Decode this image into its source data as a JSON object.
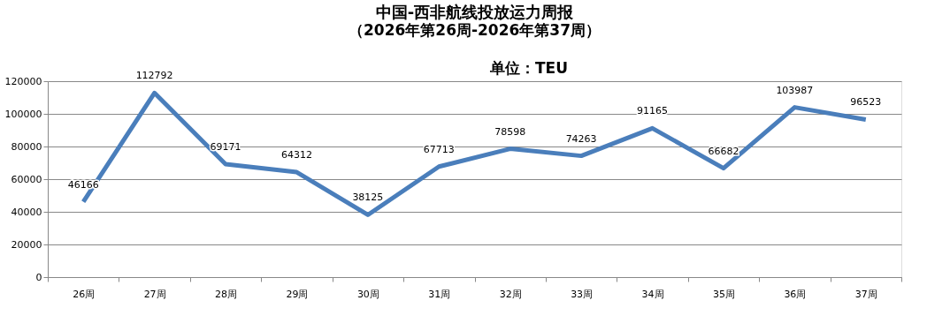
{
  "chart_data": {
    "type": "line",
    "title": "中国-西非航线投放运力周报",
    "subtitle": "（2026年第26周-2026年第37周）",
    "annotations": [
      "单位：TEU"
    ],
    "categories": [
      "26周",
      "27周",
      "28周",
      "29周",
      "30周",
      "31周",
      "32周",
      "33周",
      "34周",
      "35周",
      "36周",
      "37周"
    ],
    "series": [
      {
        "color": "#4a7ebb",
        "values": [
          46166,
          112792,
          69171,
          64312,
          38125,
          67713,
          78598,
          74263,
          91165,
          66682,
          103987,
          96523
        ]
      }
    ],
    "ylim": [
      0,
      120000
    ],
    "yticks": [
      0,
      20000,
      40000,
      60000,
      80000,
      100000,
      120000
    ],
    "grid": "y",
    "data_labels": true,
    "marker": "none",
    "line_style": "solid"
  }
}
